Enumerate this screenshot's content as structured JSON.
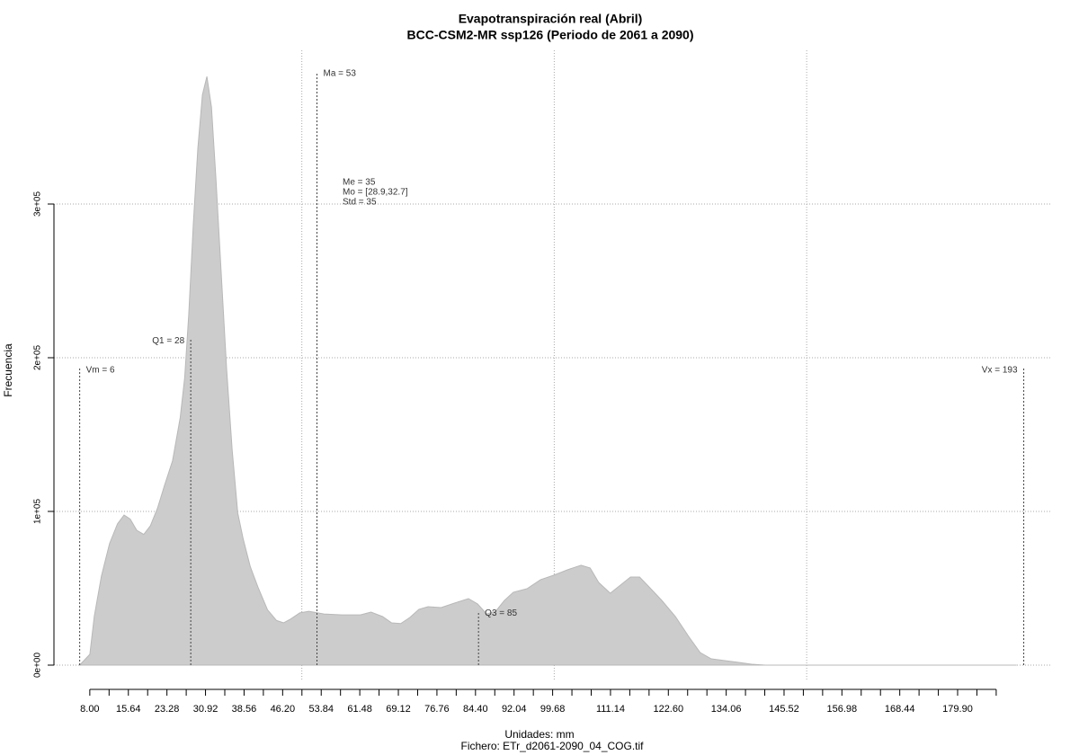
{
  "chart_data": {
    "type": "area",
    "title": "Evapotranspiración real (Abril)",
    "subtitle": "BCC-CSM2-MR ssp126 (Periodo de 2061 a 2090)",
    "x_label": "Unidades: mm",
    "caption": "Fichero: ETr_d2061-2090_04_COG.tif",
    "y_label": "Frecuencia",
    "color": "#cccccc",
    "x": [
      6,
      8,
      8.9,
      10.3,
      11.9,
      13.5,
      14.8,
      16.0,
      17.3,
      18.7,
      20.0,
      21.4,
      22.8,
      24.4,
      25.9,
      26.8,
      27.6,
      28.5,
      29.4,
      30.3,
      31.2,
      32.1,
      33.0,
      34.1,
      35.1,
      36.2,
      37.3,
      38.4,
      39.8,
      41.4,
      43.2,
      45.0,
      46.4,
      47.8,
      49.6,
      51.4,
      54.4,
      58.0,
      61.6,
      63.7,
      66.0,
      67.8,
      69.6,
      71.4,
      73.2,
      75.0,
      77.6,
      80.3,
      83.0,
      84.8,
      86.6,
      88.4,
      90.1,
      91.9,
      94.6,
      97.3,
      99.9,
      102.6,
      105.3,
      107.1,
      108.8,
      111.1,
      113.3,
      115.1,
      116.9,
      118.6,
      121.3,
      124.0,
      126.6,
      128.9,
      131.1,
      133.8,
      136.4,
      139.1,
      141.8,
      191.6
    ],
    "values": [
      0,
      7000,
      32000,
      58000,
      79000,
      92000,
      97600,
      95000,
      87700,
      85000,
      90600,
      102000,
      117000,
      133000,
      161000,
      187000,
      228000,
      287000,
      336000,
      371000,
      383000,
      363000,
      316000,
      251000,
      193000,
      140000,
      99000,
      82000,
      64000,
      50000,
      36000,
      29000,
      27500,
      30000,
      34000,
      35000,
      33300,
      32700,
      32700,
      34500,
      31600,
      27500,
      27000,
      31000,
      36300,
      38000,
      37400,
      40400,
      43300,
      39800,
      33300,
      35000,
      42000,
      47400,
      49700,
      55600,
      58500,
      62000,
      65000,
      63200,
      53800,
      46800,
      52600,
      57300,
      57300,
      51500,
      42100,
      31600,
      18700,
      8200,
      4100,
      2900,
      1800,
      600,
      0,
      0
    ],
    "xlim": [
      0.9,
      198.6
    ],
    "ylim": [
      -10000,
      400000
    ],
    "xticks": [
      {
        "value": 8,
        "label": "8.00"
      },
      {
        "value": 15.64,
        "label": "15.64"
      },
      {
        "value": 23.28,
        "label": "23.28"
      },
      {
        "value": 30.92,
        "label": "30.92"
      },
      {
        "value": 38.56,
        "label": "38.56"
      },
      {
        "value": 46.2,
        "label": "46.20"
      },
      {
        "value": 53.84,
        "label": "53.84"
      },
      {
        "value": 61.48,
        "label": "61.48"
      },
      {
        "value": 69.12,
        "label": "69.12"
      },
      {
        "value": 76.76,
        "label": "76.76"
      },
      {
        "value": 84.4,
        "label": "84.40"
      },
      {
        "value": 92.04,
        "label": "92.04"
      },
      {
        "value": 99.68,
        "label": "99.68"
      },
      {
        "value": 111.14,
        "label": "111.14"
      },
      {
        "value": 122.6,
        "label": "122.60"
      },
      {
        "value": 134.06,
        "label": "134.06"
      },
      {
        "value": 145.52,
        "label": "145.52"
      },
      {
        "value": 156.98,
        "label": "156.98"
      },
      {
        "value": 168.44,
        "label": "168.44"
      },
      {
        "value": 179.9,
        "label": "179.90"
      }
    ],
    "xminorticks": [
      11.82,
      19.46,
      27.1,
      34.74,
      42.38,
      50.02,
      57.66,
      65.3,
      72.94,
      80.58,
      88.22,
      95.86,
      103.5,
      107.32,
      114.96,
      118.78,
      126.42,
      130.24,
      137.88,
      141.7,
      149.34,
      153.16,
      160.8,
      164.62,
      172.26,
      176.08,
      183.72,
      187.54
    ],
    "xgrid": [
      50,
      100,
      150
    ],
    "yticks": [
      {
        "value": 0,
        "label": "0e+00"
      },
      {
        "value": 100000,
        "label": "1e+05"
      },
      {
        "value": 200000,
        "label": "2e+05"
      },
      {
        "value": 300000,
        "label": "3e+05"
      }
    ],
    "grid": true,
    "markers": [
      {
        "label": "Vm = 6",
        "x": 6,
        "height": 193000,
        "side": "right"
      },
      {
        "label": "Q1 = 28",
        "x": 28,
        "height": 212000,
        "side": "left"
      },
      {
        "label": "Ma = 53",
        "x": 53,
        "height": 386000,
        "side": "right"
      },
      {
        "label": "Q3 = 85",
        "x": 85,
        "height": 35000,
        "side": "right"
      },
      {
        "label": "Vx = 193",
        "x": 193,
        "height": 193000,
        "side": "left"
      }
    ],
    "stats": [
      "Me = 35",
      "Mo = [28.9,32.7]",
      "Std = 35"
    ]
  }
}
